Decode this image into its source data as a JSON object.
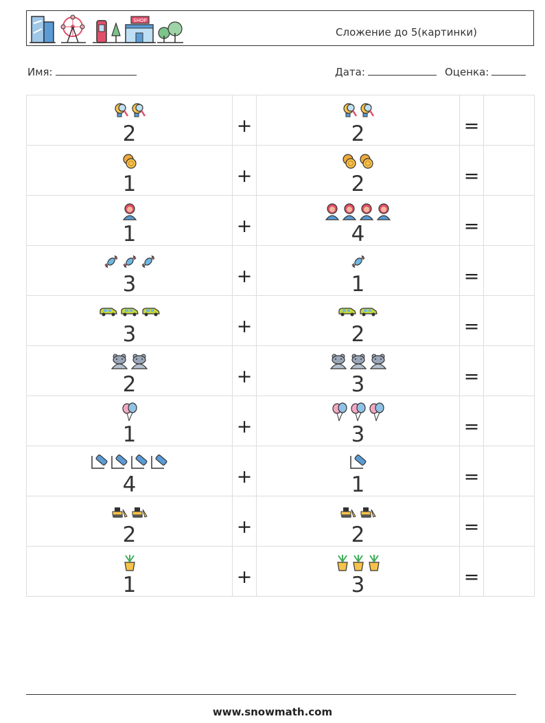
{
  "header": {
    "title": "Сложение до 5(картинки)",
    "icons": [
      "office-building-icon",
      "ferris-wheel-icon",
      "phone-booth-icon",
      "shop-icon",
      "trees-icon"
    ],
    "shop_sign": "SHOP"
  },
  "fields": {
    "name_label": "Имя:",
    "date_label": "Дата:",
    "grade_label": "Оценка:"
  },
  "operators": {
    "plus": "+",
    "equals": "="
  },
  "problems": [
    {
      "a": 2,
      "b": 2,
      "icon": "magnifier-bulb-icon"
    },
    {
      "a": 1,
      "b": 2,
      "icon": "coins-icon"
    },
    {
      "a": 1,
      "b": 4,
      "icon": "doctor-icon"
    },
    {
      "a": 3,
      "b": 1,
      "icon": "candy-icon"
    },
    {
      "a": 3,
      "b": 2,
      "icon": "car-icon"
    },
    {
      "a": 2,
      "b": 3,
      "icon": "hippo-icon"
    },
    {
      "a": 1,
      "b": 3,
      "icon": "balloons-icon"
    },
    {
      "a": 4,
      "b": 1,
      "icon": "marker-icon"
    },
    {
      "a": 2,
      "b": 2,
      "icon": "bulldozer-icon"
    },
    {
      "a": 1,
      "b": 3,
      "icon": "potted-plant-icon"
    }
  ],
  "footer": {
    "url": "www.snowmath.com"
  }
}
